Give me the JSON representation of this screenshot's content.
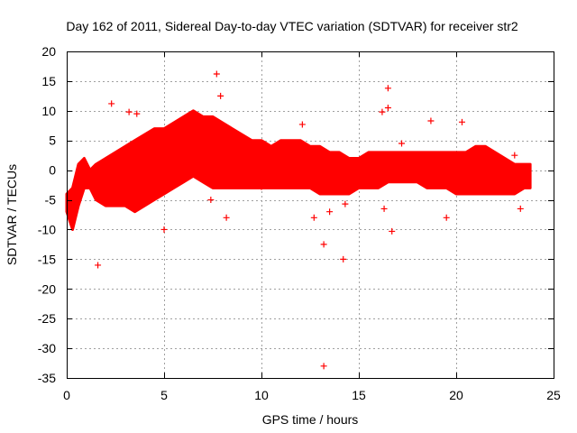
{
  "chart_data": {
    "type": "scatter",
    "title": "Day 162 of 2011, Sidereal Day-to-day VTEC variation (SDTVAR) for receiver str2",
    "xlabel": "GPS time / hours",
    "ylabel": "SDTVAR / TECUs",
    "xlim": [
      0,
      25
    ],
    "ylim": [
      -35,
      20
    ],
    "xticks": [
      0,
      5,
      10,
      15,
      20,
      25
    ],
    "yticks": [
      20,
      15,
      10,
      5,
      0,
      -5,
      -10,
      -15,
      -20,
      -25,
      -30,
      -35
    ],
    "grid": true,
    "marker": "+",
    "series": [
      {
        "name": "str2",
        "color": "#ff0000",
        "band": {
          "x": [
            0.0,
            0.3,
            0.6,
            0.9,
            1.2,
            1.5,
            2.0,
            2.5,
            3.0,
            3.5,
            4.0,
            4.5,
            5.0,
            5.5,
            6.0,
            6.5,
            7.0,
            7.5,
            8.0,
            8.5,
            9.0,
            9.5,
            10.0,
            10.5,
            11.0,
            11.5,
            12.0,
            12.5,
            13.0,
            13.5,
            14.0,
            14.5,
            15.0,
            15.5,
            16.0,
            16.5,
            17.0,
            17.5,
            18.0,
            18.5,
            19.0,
            19.5,
            20.0,
            20.5,
            21.0,
            21.5,
            22.0,
            22.5,
            23.0,
            23.5,
            23.8
          ],
          "upper": [
            -4,
            -3,
            1,
            2,
            0,
            1,
            2,
            3,
            4,
            5,
            6,
            7,
            7,
            8,
            9,
            10,
            9,
            9,
            8,
            7,
            6,
            5,
            5,
            4,
            5,
            5,
            5,
            4,
            4,
            3,
            3,
            2,
            2,
            3,
            3,
            3,
            3,
            3,
            3,
            3,
            3,
            3,
            3,
            3,
            4,
            4,
            3,
            2,
            1,
            1,
            1
          ],
          "lower": [
            -7,
            -10,
            -6,
            -3,
            -3,
            -5,
            -6,
            -6,
            -6,
            -7,
            -6,
            -5,
            -4,
            -3,
            -2,
            -1,
            -2,
            -3,
            -3,
            -3,
            -3,
            -3,
            -3,
            -3,
            -3,
            -3,
            -3,
            -3,
            -4,
            -4,
            -4,
            -4,
            -3,
            -3,
            -3,
            -2,
            -2,
            -2,
            -2,
            -3,
            -3,
            -3,
            -4,
            -4,
            -4,
            -4,
            -4,
            -4,
            -4,
            -3,
            -3
          ]
        },
        "outliers": [
          {
            "x": 1.6,
            "y": -16
          },
          {
            "x": 2.3,
            "y": 11.2
          },
          {
            "x": 3.2,
            "y": 9.8
          },
          {
            "x": 3.6,
            "y": 9.5
          },
          {
            "x": 5.0,
            "y": -10
          },
          {
            "x": 7.7,
            "y": 16.2
          },
          {
            "x": 7.9,
            "y": 12.5
          },
          {
            "x": 8.2,
            "y": -8
          },
          {
            "x": 7.4,
            "y": -5
          },
          {
            "x": 10.0,
            "y": -2.8
          },
          {
            "x": 12.1,
            "y": 7.7
          },
          {
            "x": 12.7,
            "y": -8
          },
          {
            "x": 13.2,
            "y": -33
          },
          {
            "x": 13.2,
            "y": -12.5
          },
          {
            "x": 13.5,
            "y": -7
          },
          {
            "x": 14.2,
            "y": -15
          },
          {
            "x": 14.3,
            "y": -5.7
          },
          {
            "x": 16.2,
            "y": 9.8
          },
          {
            "x": 16.3,
            "y": -6.5
          },
          {
            "x": 16.5,
            "y": 13.8
          },
          {
            "x": 16.5,
            "y": 10.5
          },
          {
            "x": 16.7,
            "y": -10.3
          },
          {
            "x": 17.2,
            "y": 4.5
          },
          {
            "x": 18.7,
            "y": 8.3
          },
          {
            "x": 19.5,
            "y": -8
          },
          {
            "x": 20.3,
            "y": 8.1
          },
          {
            "x": 23.0,
            "y": 2.5
          },
          {
            "x": 23.3,
            "y": -6.5
          }
        ]
      }
    ]
  }
}
